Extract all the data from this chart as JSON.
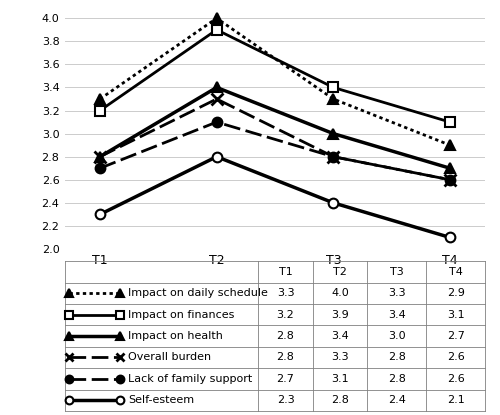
{
  "x_labels": [
    "T1",
    "T2",
    "T3",
    "T4"
  ],
  "x_values": [
    1,
    2,
    3,
    4
  ],
  "series": [
    {
      "label": "Impact on daily schedule",
      "values": [
        3.3,
        4.0,
        3.3,
        2.9
      ]
    },
    {
      "label": "Impact on finances",
      "values": [
        3.2,
        3.9,
        3.4,
        3.1
      ]
    },
    {
      "label": "Impact on health",
      "values": [
        2.8,
        3.4,
        3.0,
        2.7
      ]
    },
    {
      "label": "Overall burden",
      "values": [
        2.8,
        3.3,
        2.8,
        2.6
      ]
    },
    {
      "label": "Lack of family support",
      "values": [
        2.7,
        3.1,
        2.8,
        2.6
      ]
    },
    {
      "label": "Self-esteem",
      "values": [
        2.3,
        2.8,
        2.4,
        2.1
      ]
    }
  ],
  "ylim": [
    2.0,
    4.05
  ],
  "yticks": [
    2.0,
    2.2,
    2.4,
    2.6,
    2.8,
    3.0,
    3.2,
    3.4,
    3.6,
    3.8,
    4.0
  ],
  "color": "black",
  "table_header": [
    "",
    "T1",
    "T2",
    "T3",
    "T4"
  ],
  "table_rows": [
    [
      "Impact on daily schedule",
      "3.3",
      "4.0",
      "3.3",
      "2.9"
    ],
    [
      "Impact on finances",
      "3.2",
      "3.9",
      "3.4",
      "3.1"
    ],
    [
      "Impact on health",
      "2.8",
      "3.4",
      "3.0",
      "2.7"
    ],
    [
      "Overall burden",
      "2.8",
      "3.3",
      "2.8",
      "2.6"
    ],
    [
      "Lack of family support",
      "2.7",
      "3.1",
      "2.8",
      "2.6"
    ],
    [
      "Self-esteem",
      "2.3",
      "2.8",
      "2.4",
      "2.1"
    ]
  ],
  "figure_width": 5.0,
  "figure_height": 4.15,
  "dpi": 100
}
